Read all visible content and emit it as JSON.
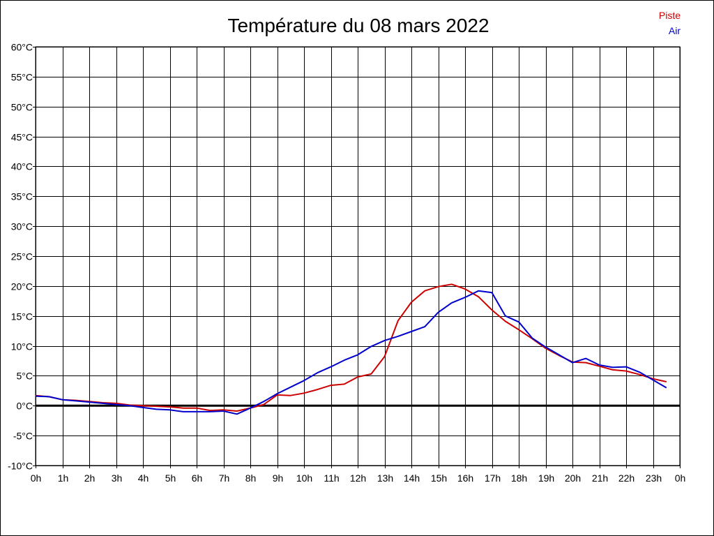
{
  "chart_data": {
    "type": "line",
    "title": "Température du 08 mars 2022",
    "xlabel": "",
    "ylabel": "",
    "x_unit": "hour",
    "xlim": [
      0,
      24
    ],
    "ylim": [
      -10,
      60
    ],
    "grid": true,
    "legend_position": "top-right",
    "x_tick_labels": [
      "0h",
      "1h",
      "2h",
      "3h",
      "4h",
      "5h",
      "6h",
      "7h",
      "8h",
      "9h",
      "10h",
      "11h",
      "12h",
      "13h",
      "14h",
      "15h",
      "16h",
      "17h",
      "18h",
      "19h",
      "20h",
      "21h",
      "22h",
      "23h",
      "0h"
    ],
    "y_ticks": [
      -10,
      -5,
      0,
      5,
      10,
      15,
      20,
      25,
      30,
      35,
      40,
      45,
      50,
      55,
      60
    ],
    "y_tick_labels": [
      "-10°C",
      "-5°C",
      "0°C",
      "5°C",
      "10°C",
      "15°C",
      "20°C",
      "25°C",
      "30°C",
      "35°C",
      "40°C",
      "45°C",
      "50°C",
      "55°C",
      "60°C"
    ],
    "zero_line_color": "#000000",
    "series": [
      {
        "name": "Piste",
        "color": "#cc0000",
        "x": [
          0,
          0.5,
          1,
          1.5,
          2,
          2.5,
          3,
          3.5,
          4,
          4.5,
          5,
          5.5,
          6,
          6.5,
          7,
          7.5,
          8,
          8.5,
          9,
          9.5,
          10,
          10.5,
          11,
          11.5,
          12,
          12.5,
          13,
          13.5,
          14,
          14.5,
          15,
          15.5,
          16,
          16.5,
          17,
          17.5,
          18,
          18.5,
          19,
          19.5,
          20,
          20.5,
          21,
          21.5,
          22,
          22.5,
          23,
          23.5
        ],
        "values": [
          1.7,
          1.5,
          1.0,
          0.9,
          0.7,
          0.5,
          0.4,
          0.1,
          0.0,
          -0.1,
          -0.2,
          -0.4,
          -0.4,
          -0.8,
          -0.7,
          -0.9,
          -0.4,
          0.2,
          1.8,
          1.7,
          2.1,
          2.7,
          3.4,
          3.6,
          4.8,
          5.3,
          8.2,
          14.2,
          17.3,
          19.2,
          19.9,
          20.3,
          19.5,
          18.2,
          16.0,
          14.1,
          12.7,
          11.2,
          9.6,
          8.4,
          7.3,
          7.2,
          6.6,
          6.0,
          5.8,
          5.2,
          4.5,
          4.0
        ]
      },
      {
        "name": "Air",
        "color": "#0000cc",
        "x": [
          0,
          0.5,
          1,
          1.5,
          2,
          2.5,
          3,
          3.5,
          4,
          4.5,
          5,
          5.5,
          6,
          6.5,
          7,
          7.5,
          8,
          8.5,
          9,
          9.5,
          10,
          10.5,
          11,
          11.5,
          12,
          12.5,
          13,
          13.5,
          14,
          14.5,
          15,
          15.5,
          16,
          16.5,
          17,
          17.5,
          18,
          18.5,
          19,
          19.5,
          20,
          20.5,
          21,
          21.5,
          22,
          22.5,
          23,
          23.5
        ],
        "values": [
          1.6,
          1.5,
          1.0,
          0.8,
          0.6,
          0.4,
          0.2,
          0.0,
          -0.3,
          -0.6,
          -0.7,
          -1.0,
          -1.0,
          -1.0,
          -0.9,
          -1.4,
          -0.4,
          0.7,
          2.0,
          3.1,
          4.2,
          5.5,
          6.5,
          7.6,
          8.5,
          9.9,
          10.9,
          11.6,
          12.4,
          13.2,
          15.6,
          17.2,
          18.1,
          19.2,
          18.9,
          15.0,
          14.0,
          11.3,
          9.8,
          8.5,
          7.2,
          7.9,
          6.8,
          6.4,
          6.5,
          5.6,
          4.3,
          3.0
        ]
      }
    ]
  }
}
